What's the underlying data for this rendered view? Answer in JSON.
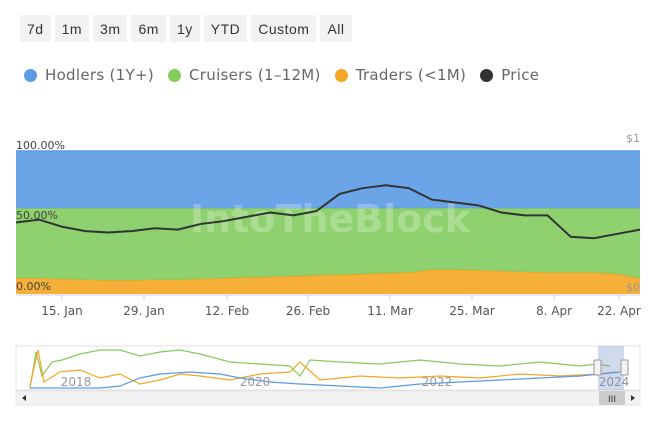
{
  "range_selector": {
    "buttons": [
      "7d",
      "1m",
      "3m",
      "6m",
      "1y",
      "YTD",
      "Custom",
      "All"
    ]
  },
  "legend": [
    {
      "label": "Hodlers (1Y+)",
      "color": "#5B9BE6"
    },
    {
      "label": "Cruisers (1–12M)",
      "color": "#82CC5E"
    },
    {
      "label": "Traders (<1M)",
      "color": "#F5A623"
    },
    {
      "label": "Price",
      "color": "#333333"
    }
  ],
  "watermark": "IntoTheBlock",
  "chart_data": {
    "type": "area",
    "x": [
      "Jan 8",
      "Jan 12",
      "Jan 16",
      "Jan 20",
      "Jan 24",
      "Jan 28",
      "Feb 1",
      "Feb 5",
      "Feb 9",
      "Feb 13",
      "Feb 17",
      "Feb 21",
      "Feb 25",
      "Feb 29",
      "Mar 4",
      "Mar 8",
      "Mar 12",
      "Mar 16",
      "Mar 20",
      "Mar 24",
      "Mar 28",
      "Apr 1",
      "Apr 5",
      "Apr 9",
      "Apr 13",
      "Apr 17",
      "Apr 21",
      "Apr 25"
    ],
    "x_ticks": [
      "15. Jan",
      "29. Jan",
      "12. Feb",
      "26. Feb",
      "11. Mar",
      "25. Mar",
      "8. Apr",
      "22. Apr"
    ],
    "y_left_ticks": [
      "100.00%",
      "50.00%",
      "0.00%"
    ],
    "y_right_ticks": [
      "$1",
      "$0"
    ],
    "ylim": [
      0,
      100
    ],
    "series": [
      {
        "name": "Traders (<1M)",
        "values": [
          11,
          11,
          10.5,
          10,
          9.5,
          9.5,
          10,
          10,
          10.5,
          11,
          11.5,
          12,
          12.5,
          13,
          13.5,
          14,
          14.5,
          15,
          17,
          17,
          16.5,
          16,
          15.5,
          15,
          15,
          15,
          14,
          11
        ]
      },
      {
        "name": "Cruisers (1–12M)",
        "values": [
          49,
          49,
          49.5,
          50,
          50.5,
          50.5,
          50,
          50,
          49.5,
          49,
          48.5,
          48,
          47.5,
          47,
          46.5,
          46,
          45.5,
          45,
          43,
          43,
          43.5,
          44,
          44.5,
          45,
          45,
          45,
          46,
          49
        ]
      },
      {
        "name": "Hodlers (1Y+)",
        "values": [
          40,
          40,
          40,
          40,
          40,
          40,
          40,
          40,
          40,
          40,
          40,
          40,
          40,
          40,
          40,
          40,
          40,
          40,
          40,
          40,
          40,
          40,
          40,
          40,
          40,
          40,
          40,
          40
        ]
      },
      {
        "name": "Price",
        "values": [
          0.5,
          0.52,
          0.47,
          0.44,
          0.43,
          0.44,
          0.46,
          0.45,
          0.49,
          0.51,
          0.54,
          0.57,
          0.55,
          0.58,
          0.7,
          0.74,
          0.76,
          0.74,
          0.66,
          0.64,
          0.62,
          0.57,
          0.55,
          0.55,
          0.4,
          0.39,
          0.42,
          0.45
        ]
      }
    ]
  },
  "navigator": {
    "year_labels": [
      "2018",
      "2020",
      "2022",
      "2024"
    ],
    "scroll_grip": "III"
  }
}
